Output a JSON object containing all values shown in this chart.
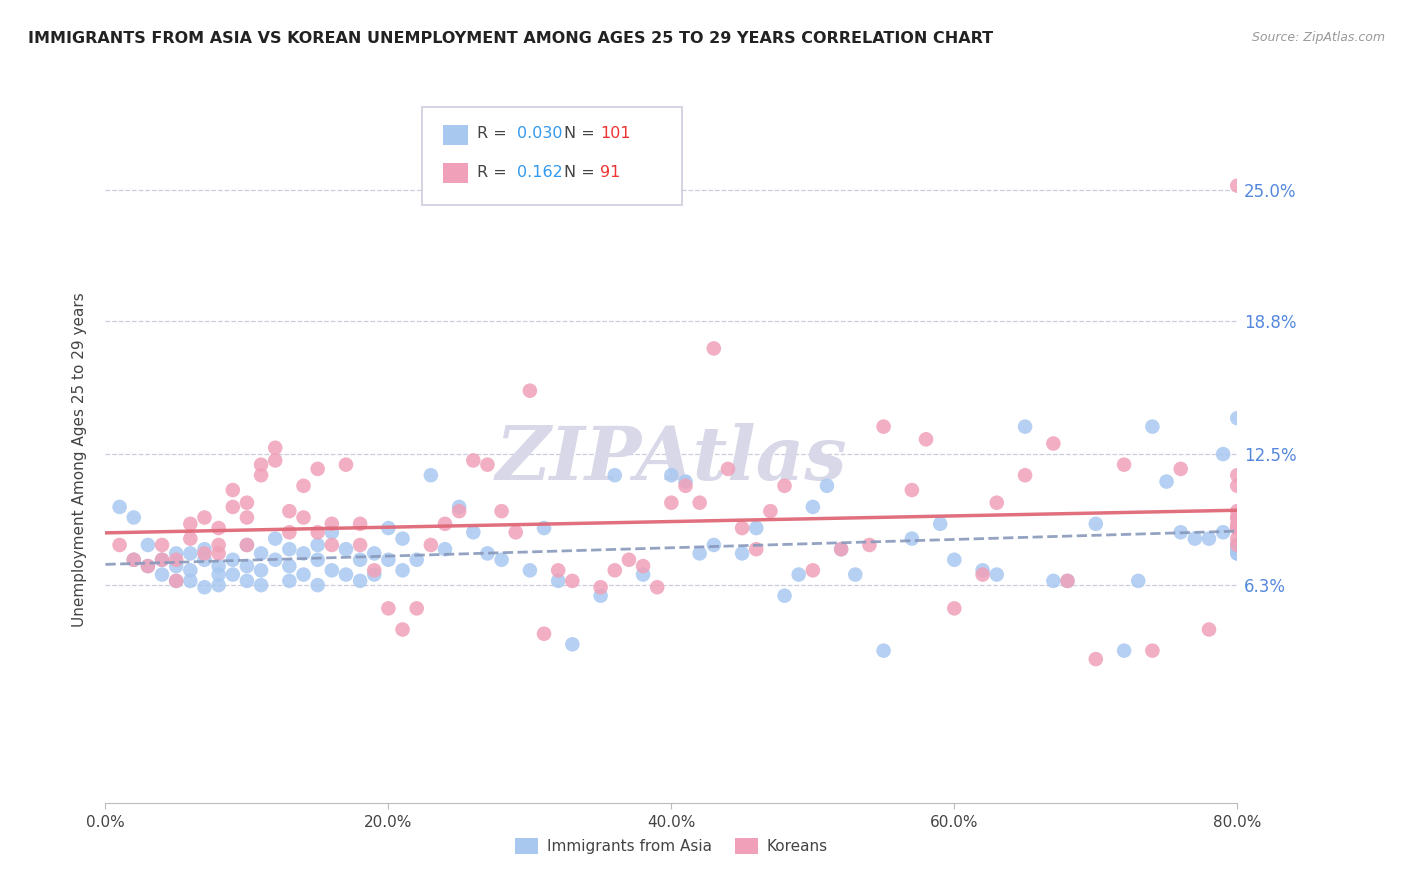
{
  "title": "IMMIGRANTS FROM ASIA VS KOREAN UNEMPLOYMENT AMONG AGES 25 TO 29 YEARS CORRELATION CHART",
  "source": "Source: ZipAtlas.com",
  "ylabel": "Unemployment Among Ages 25 to 29 years",
  "ytick_labels": [
    "6.3%",
    "12.5%",
    "18.8%",
    "25.0%"
  ],
  "ytick_values": [
    0.063,
    0.125,
    0.188,
    0.25
  ],
  "xlim": [
    0.0,
    0.8
  ],
  "ylim": [
    -0.04,
    0.285
  ],
  "xtick_values": [
    0.0,
    0.2,
    0.4,
    0.6,
    0.8
  ],
  "xtick_labels": [
    "0.0%",
    "20.0%",
    "40.0%",
    "60.0%",
    "80.0%"
  ],
  "legend_blue_R": "0.030",
  "legend_blue_N": "101",
  "legend_pink_R": "0.162",
  "legend_pink_N": "91",
  "color_blue": "#A8C8F0",
  "color_pink": "#F0A0B8",
  "color_blue_line": "#8899BB",
  "color_pink_line": "#E06878",
  "watermark_text": "ZIPAtlas",
  "watermark_color": "#D8D8E8",
  "legend_label_blue": "Immigrants from Asia",
  "legend_label_pink": "Koreans",
  "color_R": "#3399EE",
  "color_N": "#EE3333",
  "color_label": "#444444",
  "blue_scatter_x": [
    0.01,
    0.02,
    0.02,
    0.03,
    0.03,
    0.04,
    0.04,
    0.05,
    0.05,
    0.05,
    0.06,
    0.06,
    0.06,
    0.07,
    0.07,
    0.07,
    0.08,
    0.08,
    0.08,
    0.09,
    0.09,
    0.1,
    0.1,
    0.1,
    0.11,
    0.11,
    0.11,
    0.12,
    0.12,
    0.13,
    0.13,
    0.13,
    0.14,
    0.14,
    0.15,
    0.15,
    0.15,
    0.16,
    0.16,
    0.17,
    0.17,
    0.18,
    0.18,
    0.19,
    0.19,
    0.2,
    0.2,
    0.21,
    0.21,
    0.22,
    0.23,
    0.24,
    0.25,
    0.26,
    0.27,
    0.28,
    0.3,
    0.31,
    0.32,
    0.33,
    0.35,
    0.36,
    0.38,
    0.4,
    0.41,
    0.42,
    0.43,
    0.45,
    0.46,
    0.48,
    0.49,
    0.5,
    0.51,
    0.52,
    0.53,
    0.55,
    0.57,
    0.59,
    0.6,
    0.62,
    0.63,
    0.65,
    0.67,
    0.68,
    0.7,
    0.72,
    0.73,
    0.74,
    0.75,
    0.76,
    0.77,
    0.78,
    0.79,
    0.79,
    0.8,
    0.8,
    0.8,
    0.8,
    0.8,
    0.8,
    0.8
  ],
  "blue_scatter_y": [
    0.1,
    0.095,
    0.075,
    0.082,
    0.072,
    0.075,
    0.068,
    0.078,
    0.072,
    0.065,
    0.078,
    0.07,
    0.065,
    0.08,
    0.075,
    0.062,
    0.072,
    0.068,
    0.063,
    0.075,
    0.068,
    0.082,
    0.072,
    0.065,
    0.078,
    0.07,
    0.063,
    0.085,
    0.075,
    0.08,
    0.072,
    0.065,
    0.078,
    0.068,
    0.082,
    0.075,
    0.063,
    0.088,
    0.07,
    0.08,
    0.068,
    0.075,
    0.065,
    0.078,
    0.068,
    0.09,
    0.075,
    0.085,
    0.07,
    0.075,
    0.115,
    0.08,
    0.1,
    0.088,
    0.078,
    0.075,
    0.07,
    0.09,
    0.065,
    0.035,
    0.058,
    0.115,
    0.068,
    0.115,
    0.112,
    0.078,
    0.082,
    0.078,
    0.09,
    0.058,
    0.068,
    0.1,
    0.11,
    0.08,
    0.068,
    0.032,
    0.085,
    0.092,
    0.075,
    0.07,
    0.068,
    0.138,
    0.065,
    0.065,
    0.092,
    0.032,
    0.065,
    0.138,
    0.112,
    0.088,
    0.085,
    0.085,
    0.088,
    0.125,
    0.142,
    0.082,
    0.078,
    0.082,
    0.078,
    0.082,
    0.08
  ],
  "pink_scatter_x": [
    0.01,
    0.02,
    0.03,
    0.04,
    0.04,
    0.05,
    0.05,
    0.06,
    0.06,
    0.07,
    0.07,
    0.08,
    0.08,
    0.08,
    0.09,
    0.09,
    0.1,
    0.1,
    0.1,
    0.11,
    0.11,
    0.12,
    0.12,
    0.13,
    0.13,
    0.14,
    0.14,
    0.15,
    0.15,
    0.16,
    0.16,
    0.17,
    0.18,
    0.18,
    0.19,
    0.2,
    0.21,
    0.22,
    0.23,
    0.24,
    0.25,
    0.26,
    0.27,
    0.28,
    0.29,
    0.3,
    0.31,
    0.32,
    0.33,
    0.35,
    0.36,
    0.37,
    0.38,
    0.39,
    0.4,
    0.41,
    0.42,
    0.43,
    0.44,
    0.45,
    0.46,
    0.47,
    0.48,
    0.5,
    0.52,
    0.54,
    0.55,
    0.57,
    0.58,
    0.6,
    0.62,
    0.63,
    0.65,
    0.67,
    0.68,
    0.7,
    0.72,
    0.74,
    0.76,
    0.78,
    0.8,
    0.8,
    0.8,
    0.8,
    0.8,
    0.8,
    0.8,
    0.8,
    0.8,
    0.8,
    0.8
  ],
  "pink_scatter_y": [
    0.082,
    0.075,
    0.072,
    0.082,
    0.075,
    0.075,
    0.065,
    0.092,
    0.085,
    0.095,
    0.078,
    0.09,
    0.082,
    0.078,
    0.1,
    0.108,
    0.102,
    0.082,
    0.095,
    0.115,
    0.12,
    0.128,
    0.122,
    0.098,
    0.088,
    0.11,
    0.095,
    0.118,
    0.088,
    0.092,
    0.082,
    0.12,
    0.082,
    0.092,
    0.07,
    0.052,
    0.042,
    0.052,
    0.082,
    0.092,
    0.098,
    0.122,
    0.12,
    0.098,
    0.088,
    0.155,
    0.04,
    0.07,
    0.065,
    0.062,
    0.07,
    0.075,
    0.072,
    0.062,
    0.102,
    0.11,
    0.102,
    0.175,
    0.118,
    0.09,
    0.08,
    0.098,
    0.11,
    0.07,
    0.08,
    0.082,
    0.138,
    0.108,
    0.132,
    0.052,
    0.068,
    0.102,
    0.115,
    0.13,
    0.065,
    0.028,
    0.12,
    0.032,
    0.118,
    0.042,
    0.252,
    0.11,
    0.098,
    0.082,
    0.115,
    0.095,
    0.09,
    0.085,
    0.095,
    0.092,
    0.09
  ]
}
